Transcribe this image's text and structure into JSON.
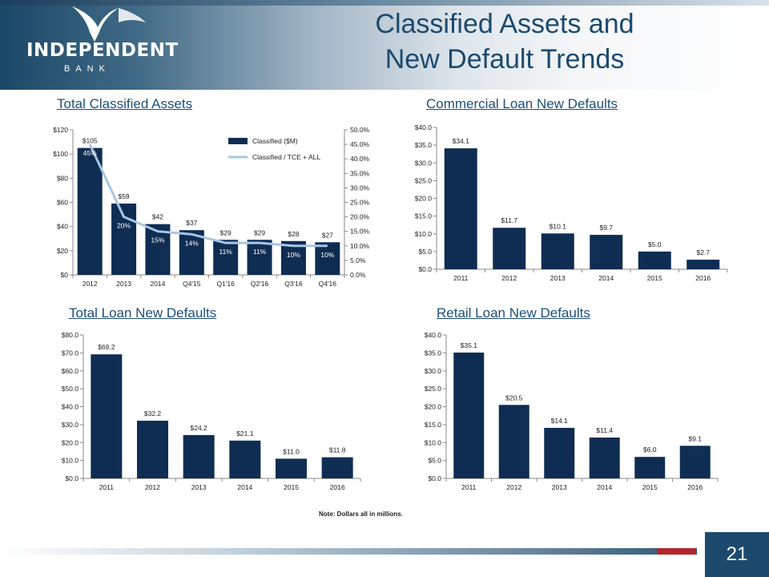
{
  "header": {
    "title_line1": "Classified Assets and",
    "title_line2": "New Default Trends",
    "logo_name": "INDEPENDENT",
    "logo_sub": "BANK",
    "logo_icon": "eagle-icon"
  },
  "note": "Note: Dollars all in millions.",
  "page_number": "21",
  "colors": {
    "bar": "#0f2d52",
    "line": "#a8c6e6",
    "title": "#1c4a6e"
  },
  "chart_data": [
    {
      "id": "classified",
      "title": "Total Classified Assets",
      "type": "bar",
      "categories": [
        "2012",
        "2013",
        "2014",
        "Q4'15",
        "Q1'16",
        "Q2'16",
        "Q3'16",
        "Q4'16"
      ],
      "yticks": [
        "$120",
        "$100",
        "$80",
        "$60",
        "$40",
        "$20",
        "$0"
      ],
      "y2ticks": [
        "50.0%",
        "45.0%",
        "40.0%",
        "35.0%",
        "30.0%",
        "25.0%",
        "20.0%",
        "15.0%",
        "10.0%",
        "5.0%",
        "0.0%"
      ],
      "ylim": [
        0,
        120
      ],
      "y2lim": [
        0,
        50
      ],
      "series": [
        {
          "name": "Classified ($M)",
          "type": "bar",
          "values": [
            105,
            59,
            42,
            37,
            29,
            29,
            28,
            27
          ],
          "labels": [
            "$105",
            "$59",
            "$42",
            "$37",
            "$29",
            "$29",
            "$28",
            "$27"
          ]
        },
        {
          "name": "Classified / TCE + ALL",
          "type": "line",
          "axis": "right",
          "values": [
            45,
            20,
            15,
            14,
            11,
            11,
            10,
            10
          ],
          "labels": [
            "45%",
            "20%",
            "15%",
            "14%",
            "11%",
            "11%",
            "10%",
            "10%"
          ]
        }
      ],
      "legend": "top-right"
    },
    {
      "id": "commercial",
      "title": "Commercial Loan New Defaults",
      "type": "bar",
      "categories": [
        "2011",
        "2012",
        "2013",
        "2014",
        "2015",
        "2016"
      ],
      "yticks": [
        "$40.0",
        "$35.0",
        "$30.0",
        "$25.0",
        "$20.0",
        "$15.0",
        "$10.0",
        "$5.0",
        "$0.0"
      ],
      "ylim": [
        0,
        40
      ],
      "values": [
        34.1,
        11.7,
        10.1,
        9.7,
        5.0,
        2.7
      ],
      "labels": [
        "$34.1",
        "$11.7",
        "$10.1",
        "$9.7",
        "$5.0",
        "$2.7"
      ]
    },
    {
      "id": "total",
      "title": "Total Loan New Defaults",
      "type": "bar",
      "categories": [
        "2011",
        "2012",
        "2013",
        "2014",
        "2015",
        "2016"
      ],
      "yticks": [
        "$80.0",
        "$70.0",
        "$60.0",
        "$50.0",
        "$40.0",
        "$30.0",
        "$20.0",
        "$10.0",
        "$0.0"
      ],
      "ylim": [
        0,
        80
      ],
      "values": [
        69.2,
        32.2,
        24.2,
        21.1,
        11.0,
        11.8
      ],
      "labels": [
        "$69.2",
        "$32.2",
        "$24.2",
        "$21.1",
        "$11.0",
        "$11.8"
      ]
    },
    {
      "id": "retail",
      "title": "Retail Loan New Defaults",
      "type": "bar",
      "categories": [
        "2011",
        "2012",
        "2013",
        "2014",
        "2015",
        "2016"
      ],
      "yticks": [
        "$40.0",
        "$35.0",
        "$30.0",
        "$25.0",
        "$20.0",
        "$15.0",
        "$10.0",
        "$5.0",
        "$0.0"
      ],
      "ylim": [
        0,
        40
      ],
      "values": [
        35.1,
        20.5,
        14.1,
        11.4,
        6.0,
        9.1
      ],
      "labels": [
        "$35.1",
        "$20.5",
        "$14.1",
        "$11.4",
        "$6.0",
        "$9.1"
      ]
    }
  ]
}
